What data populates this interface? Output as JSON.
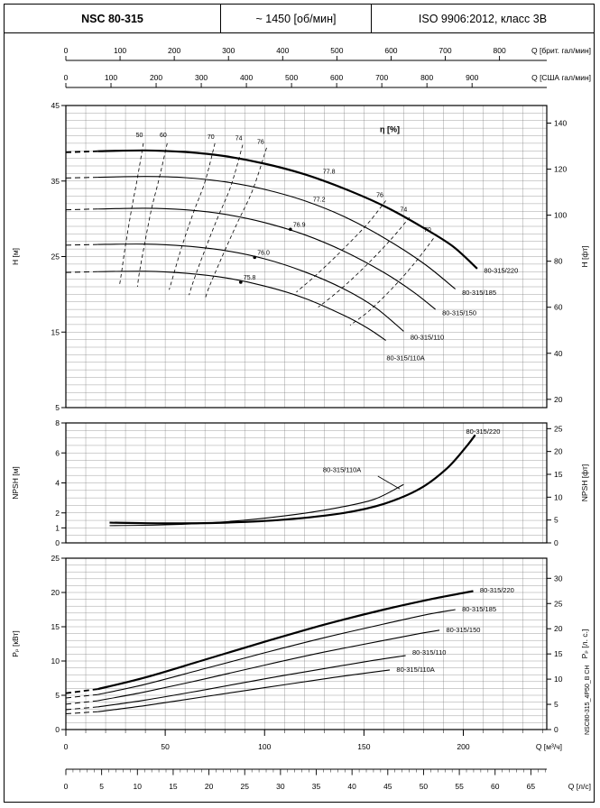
{
  "header": {
    "model": "NSC 80-315",
    "speed": "~ 1450 [об/мин]",
    "standard": "ISO 9906:2012, класс 3В"
  },
  "side_note": "NSC80-315_4P50_B CH",
  "flow_axes": {
    "top": [
      {
        "label": "Q [брит. гал/мин]",
        "ticks": [
          0,
          100,
          200,
          300,
          400,
          500,
          600,
          700,
          800
        ],
        "to_m3h": 0.27276
      },
      {
        "label": "Q [США гал/мин]",
        "ticks": [
          0,
          100,
          200,
          300,
          400,
          500,
          600,
          700,
          800,
          900
        ],
        "to_m3h": 0.22712
      }
    ],
    "bottom": [
      {
        "label": "Q [м³/ч]",
        "ticks": [
          0,
          50,
          100,
          150,
          200
        ],
        "to_m3h": 1
      },
      {
        "label": "Q [л/с]",
        "ticks": [
          0,
          5,
          10,
          15,
          20,
          25,
          30,
          35,
          40,
          45,
          50,
          55,
          60,
          65
        ],
        "to_m3h": 3.6
      }
    ]
  },
  "chart_data": [
    {
      "id": "head",
      "type": "line",
      "xlabel": "Q [м³/ч]",
      "ylabel_left": "H [м]",
      "ylabel_right": "H [фт]",
      "xlim": [
        0,
        242
      ],
      "ylim": [
        5,
        45
      ],
      "yticks_left": [
        5,
        15,
        25,
        35,
        45
      ],
      "yticks_right": [
        20,
        40,
        60,
        80,
        100,
        120,
        140
      ],
      "right_factor": 0.3048,
      "grid_x": 10,
      "grid_y": 1,
      "eta_title": "η [%]",
      "eta_title_pos": [
        163,
        41.5
      ],
      "series": [
        {
          "name": "80-315/220",
          "bold": true,
          "label_pos": [
            209,
            23.2
          ],
          "dash": [
            [
              0,
              38.8
            ],
            [
              16,
              38.95
            ]
          ],
          "points": [
            [
              16,
              38.95
            ],
            [
              40,
              39.05
            ],
            [
              60,
              38.85
            ],
            [
              80,
              38.3
            ],
            [
              100,
              37.3
            ],
            [
              120,
              35.9
            ],
            [
              140,
              34.0
            ],
            [
              160,
              31.7
            ],
            [
              180,
              28.8
            ],
            [
              195,
              26.3
            ],
            [
              207,
              23.4
            ]
          ]
        },
        {
          "name": "80-315/185",
          "bold": false,
          "label_pos": [
            198,
            20.3
          ],
          "dash": [
            [
              0,
              35.4
            ],
            [
              16,
              35.5
            ]
          ],
          "points": [
            [
              16,
              35.5
            ],
            [
              40,
              35.6
            ],
            [
              60,
              35.45
            ],
            [
              80,
              34.9
            ],
            [
              100,
              33.9
            ],
            [
              120,
              32.4
            ],
            [
              140,
              30.3
            ],
            [
              160,
              27.5
            ],
            [
              180,
              24.1
            ],
            [
              196,
              20.7
            ]
          ]
        },
        {
          "name": "80-315/150",
          "bold": false,
          "label_pos": [
            188,
            17.6
          ],
          "dash": [
            [
              0,
              31.2
            ],
            [
              16,
              31.3
            ]
          ],
          "points": [
            [
              16,
              31.3
            ],
            [
              40,
              31.4
            ],
            [
              60,
              31.2
            ],
            [
              80,
              30.6
            ],
            [
              100,
              29.5
            ],
            [
              120,
              27.9
            ],
            [
              140,
              25.7
            ],
            [
              160,
              22.9
            ],
            [
              175,
              20.3
            ],
            [
              186,
              18.0
            ]
          ]
        },
        {
          "name": "80-315/110",
          "bold": false,
          "label_pos": [
            172,
            14.4
          ],
          "dash": [
            [
              0,
              26.5
            ],
            [
              16,
              26.6
            ]
          ],
          "points": [
            [
              16,
              26.6
            ],
            [
              40,
              26.65
            ],
            [
              60,
              26.4
            ],
            [
              80,
              25.8
            ],
            [
              100,
              24.7
            ],
            [
              120,
              23.0
            ],
            [
              140,
              20.7
            ],
            [
              156,
              18.2
            ],
            [
              170,
              15.1
            ]
          ]
        },
        {
          "name": "80-315/110A",
          "bold": false,
          "label_pos": [
            160,
            11.6
          ],
          "dash": [
            [
              0,
              22.9
            ],
            [
              16,
              23.0
            ]
          ],
          "points": [
            [
              16,
              23.0
            ],
            [
              40,
              23.05
            ],
            [
              60,
              22.8
            ],
            [
              80,
              22.2
            ],
            [
              100,
              21.1
            ],
            [
              120,
              19.5
            ],
            [
              140,
              17.2
            ],
            [
              152,
              15.5
            ],
            [
              161,
              13.9
            ]
          ]
        }
      ],
      "eta_lines": [
        {
          "label": "50",
          "label_pos": [
            37,
            40.8
          ],
          "points": [
            [
              39,
              40.0
            ],
            [
              36,
              35.4
            ],
            [
              33,
              31.2
            ],
            [
              30,
              26.5
            ],
            [
              28,
              22.9
            ],
            [
              27,
              21.2
            ]
          ]
        },
        {
          "label": "60",
          "label_pos": [
            49,
            40.8
          ],
          "points": [
            [
              51,
              40.0
            ],
            [
              47,
              35.4
            ],
            [
              43,
              31.2
            ],
            [
              39.5,
              26.5
            ],
            [
              37,
              22.9
            ],
            [
              36,
              21.0
            ]
          ]
        },
        {
          "label": "70",
          "label_pos": [
            73,
            40.6
          ],
          "points": [
            [
              75,
              40.0
            ],
            [
              70,
              34.9
            ],
            [
              64,
              30.7
            ],
            [
              58,
              26.0
            ],
            [
              54,
              22.4
            ],
            [
              52,
              20.6
            ]
          ]
        },
        {
          "label": "74",
          "label_pos": [
            87,
            40.4
          ],
          "points": [
            [
              89,
              39.8
            ],
            [
              83,
              34.3
            ],
            [
              76,
              29.9
            ],
            [
              69,
              25.2
            ],
            [
              64,
              21.6
            ],
            [
              62,
              19.9
            ]
          ]
        },
        {
          "label": "76",
          "label_pos": [
            98,
            39.9
          ],
          "points": [
            [
              101,
              39.4
            ],
            [
              94,
              33.8
            ],
            [
              86,
              29.3
            ],
            [
              78,
              24.6
            ],
            [
              72,
              20.9
            ],
            [
              70,
              19.3
            ]
          ]
        },
        {
          "label": "76",
          "label_pos": [
            158,
            32.9
          ],
          "points": [
            [
              161,
              32.4
            ],
            [
              152,
              29.4
            ],
            [
              140,
              26.1
            ],
            [
              127,
              22.8
            ],
            [
              116,
              20.3
            ]
          ]
        },
        {
          "label": "74",
          "label_pos": [
            170,
            31.0
          ],
          "points": [
            [
              173,
              30.2
            ],
            [
              163,
              27.1
            ],
            [
              151,
              23.8
            ],
            [
              138,
              20.6
            ],
            [
              127,
              18.3
            ]
          ]
        },
        {
          "label": "70",
          "label_pos": [
            182,
            28.3
          ],
          "points": [
            [
              185,
              27.4
            ],
            [
              176,
              24.3
            ],
            [
              165,
              21.0
            ],
            [
              153,
              17.9
            ],
            [
              143,
              15.9
            ]
          ]
        }
      ],
      "bep_points": [
        {
          "label": "77.8",
          "q": 128,
          "h": 35.6,
          "dot": false
        },
        {
          "label": "77.2",
          "q": 123,
          "h": 31.9,
          "dot": false
        },
        {
          "label": "76.9",
          "q": 113,
          "h": 28.6,
          "dot": true
        },
        {
          "label": "76.0",
          "q": 95,
          "h": 24.9,
          "dot": true
        },
        {
          "label": "75.8",
          "q": 88,
          "h": 21.6,
          "dot": true
        }
      ]
    },
    {
      "id": "npsh",
      "type": "line",
      "xlabel": "Q [м³/ч]",
      "ylabel_left": "NPSH [м]",
      "ylabel_right": "NPSH [фт]",
      "xlim": [
        0,
        242
      ],
      "ylim": [
        0,
        8
      ],
      "yticks_left": [
        0,
        1,
        2,
        4,
        6,
        8
      ],
      "yticks_right": [
        0,
        5,
        10,
        15,
        20,
        25
      ],
      "right_factor": 0.3048,
      "grid_x": 10,
      "grid_y": 0.5,
      "series": [
        {
          "name": "80-315/220",
          "bold": true,
          "label_pos": [
            200,
            7.45
          ],
          "points": [
            [
              22,
              1.35
            ],
            [
              50,
              1.3
            ],
            [
              80,
              1.35
            ],
            [
              110,
              1.55
            ],
            [
              140,
              2.0
            ],
            [
              160,
              2.6
            ],
            [
              178,
              3.6
            ],
            [
              192,
              5.0
            ],
            [
              202,
              6.5
            ],
            [
              206,
              7.2
            ]
          ]
        },
        {
          "name": "80-315/110A",
          "bold": false,
          "label_pos": [
            128,
            4.9
          ],
          "leader": [
            [
              157,
              4.45
            ],
            [
              168,
              3.6
            ]
          ],
          "points": [
            [
              22,
              1.15
            ],
            [
              50,
              1.2
            ],
            [
              80,
              1.4
            ],
            [
              110,
              1.8
            ],
            [
              135,
              2.3
            ],
            [
              155,
              2.9
            ],
            [
              170,
              3.9
            ]
          ]
        }
      ]
    },
    {
      "id": "power",
      "type": "line",
      "xlabel": "Q [м³/ч]",
      "ylabel_left": "Pₚ [кВт]",
      "ylabel_right": "Pₚ [л. с.]",
      "xlim": [
        0,
        242
      ],
      "ylim": [
        0,
        25
      ],
      "yticks_left": [
        0,
        5,
        10,
        15,
        20,
        25
      ],
      "yticks_right": [
        0,
        5,
        10,
        15,
        20,
        25,
        30
      ],
      "right_factor": 0.7355,
      "grid_x": 10,
      "grid_y": 1,
      "series": [
        {
          "name": "80-315/220",
          "bold": true,
          "label_pos": [
            207,
            20.4
          ],
          "dash": [
            [
              0,
              5.3
            ],
            [
              16,
              5.9
            ]
          ],
          "points": [
            [
              16,
              5.9
            ],
            [
              40,
              7.6
            ],
            [
              70,
              10.2
            ],
            [
              100,
              12.8
            ],
            [
              130,
              15.3
            ],
            [
              160,
              17.5
            ],
            [
              185,
              19.1
            ],
            [
              205,
              20.2
            ]
          ]
        },
        {
          "name": "80-315/185",
          "bold": false,
          "label_pos": [
            198,
            17.6
          ],
          "dash": [
            [
              0,
              4.6
            ],
            [
              16,
              5.1
            ]
          ],
          "points": [
            [
              16,
              5.1
            ],
            [
              40,
              6.6
            ],
            [
              70,
              8.9
            ],
            [
              100,
              11.2
            ],
            [
              130,
              13.4
            ],
            [
              160,
              15.4
            ],
            [
              182,
              16.8
            ],
            [
              196,
              17.5
            ]
          ]
        },
        {
          "name": "80-315/150",
          "bold": false,
          "label_pos": [
            190,
            14.6
          ],
          "dash": [
            [
              0,
              3.7
            ],
            [
              16,
              4.2
            ]
          ],
          "points": [
            [
              16,
              4.2
            ],
            [
              40,
              5.5
            ],
            [
              70,
              7.4
            ],
            [
              100,
              9.4
            ],
            [
              130,
              11.3
            ],
            [
              160,
              13.0
            ],
            [
              178,
              14.0
            ],
            [
              188,
              14.5
            ]
          ]
        },
        {
          "name": "80-315/110",
          "bold": false,
          "label_pos": [
            173,
            11.3
          ],
          "dash": [
            [
              0,
              2.9
            ],
            [
              16,
              3.3
            ]
          ],
          "points": [
            [
              16,
              3.3
            ],
            [
              40,
              4.3
            ],
            [
              70,
              5.8
            ],
            [
              100,
              7.4
            ],
            [
              130,
              8.9
            ],
            [
              155,
              10.1
            ],
            [
              171,
              10.8
            ]
          ]
        },
        {
          "name": "80-315/110A",
          "bold": false,
          "label_pos": [
            165,
            8.8
          ],
          "dash": [
            [
              0,
              2.3
            ],
            [
              16,
              2.6
            ]
          ],
          "points": [
            [
              16,
              2.6
            ],
            [
              40,
              3.5
            ],
            [
              70,
              4.8
            ],
            [
              100,
              6.1
            ],
            [
              130,
              7.4
            ],
            [
              150,
              8.2
            ],
            [
              163,
              8.7
            ]
          ]
        }
      ]
    }
  ]
}
